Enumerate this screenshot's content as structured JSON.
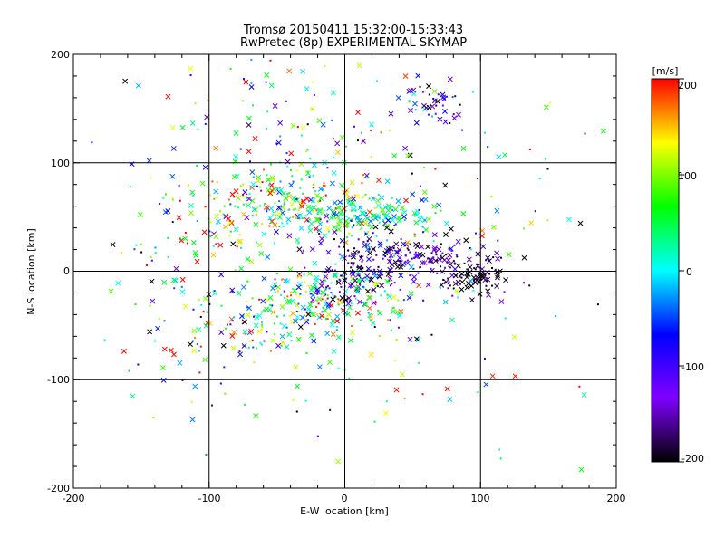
{
  "chart_data": {
    "type": "scatter",
    "title": "Tromsø 20150411 15:32:00-15:33:43",
    "subtitle": "RwPretec (8p) EXPERIMENTAL SKYMAP",
    "xlabel": "E-W location [km]",
    "ylabel": "N-S location [km]",
    "xlim": [
      -200,
      200
    ],
    "ylim": [
      -200,
      200
    ],
    "xticks": [
      "-200",
      "-100",
      "0",
      "100",
      "200"
    ],
    "yticks": [
      "-200",
      "-100",
      "0",
      "100",
      "200"
    ],
    "grid": true,
    "colorbar": {
      "label": "[m/s]",
      "range": [
        -200,
        200
      ],
      "ticks": [
        "200",
        "100",
        "0",
        "-100",
        "-200"
      ],
      "colors": [
        "#000000",
        "#7f00ff",
        "#0000ff",
        "#00ffff",
        "#00ff00",
        "#ffff00",
        "#ff0000"
      ]
    },
    "clusters": [
      {
        "cx": -40,
        "cy": 65,
        "sx": 35,
        "sy": 15,
        "n": 220,
        "vmean": 80,
        "vsd": 90
      },
      {
        "cx": 10,
        "cy": 50,
        "sx": 30,
        "sy": 10,
        "n": 160,
        "vmean": 20,
        "vsd": 60
      },
      {
        "cx": 45,
        "cy": 15,
        "sx": 30,
        "sy": 10,
        "n": 160,
        "vmean": -160,
        "vsd": 50
      },
      {
        "cx": 95,
        "cy": -5,
        "sx": 15,
        "sy": 10,
        "n": 90,
        "vmean": -190,
        "vsd": 30
      },
      {
        "cx": -20,
        "cy": -30,
        "sx": 30,
        "sy": 15,
        "n": 200,
        "vmean": 60,
        "vsd": 90
      },
      {
        "cx": 10,
        "cy": -10,
        "sx": 20,
        "sy": 10,
        "n": 100,
        "vmean": -120,
        "vsd": 80
      },
      {
        "cx": 65,
        "cy": 155,
        "sx": 12,
        "sy": 12,
        "n": 50,
        "vmean": -100,
        "vsd": 80
      },
      {
        "cx": -60,
        "cy": 130,
        "sx": 45,
        "sy": 40,
        "n": 80,
        "vmean": 60,
        "vsd": 120
      },
      {
        "cx": -80,
        "cy": -60,
        "sx": 45,
        "sy": 30,
        "n": 90,
        "vmean": 80,
        "vsd": 90
      },
      {
        "cx": 0,
        "cy": 0,
        "sx": 100,
        "sy": 90,
        "n": 260,
        "vmean": 0,
        "vsd": 140
      },
      {
        "cx": -110,
        "cy": 30,
        "sx": 30,
        "sy": 30,
        "n": 60,
        "vmean": 40,
        "vsd": 130
      }
    ]
  }
}
